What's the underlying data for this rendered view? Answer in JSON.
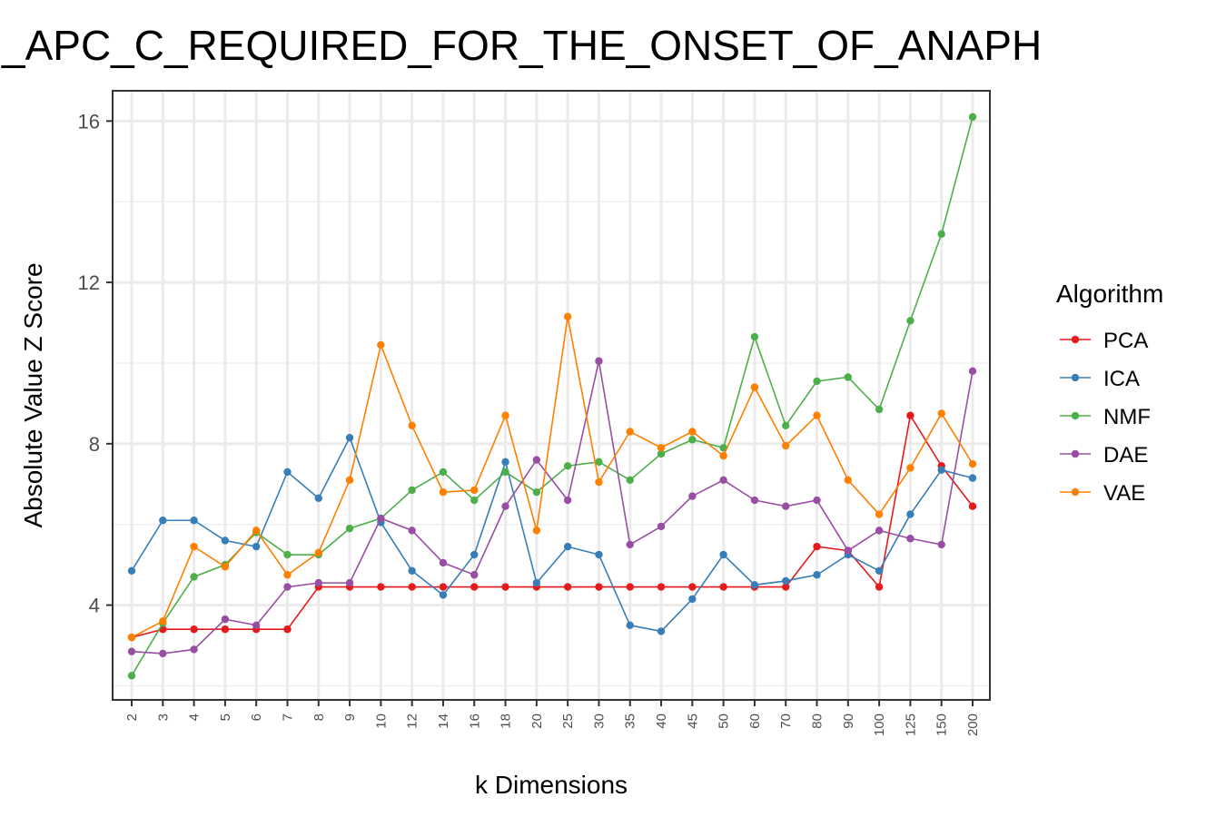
{
  "chart_data": {
    "type": "line",
    "title": "_APC_C_REQUIRED_FOR_THE_ONSET_OF_ANAPH",
    "xlabel": "k Dimensions",
    "ylabel": "Absolute Value Z Score",
    "categories": [
      "2",
      "3",
      "4",
      "5",
      "6",
      "7",
      "8",
      "9",
      "10",
      "12",
      "14",
      "16",
      "18",
      "20",
      "25",
      "30",
      "35",
      "40",
      "45",
      "50",
      "60",
      "70",
      "80",
      "90",
      "100",
      "125",
      "150",
      "200"
    ],
    "yticks": [
      4,
      8,
      12,
      16
    ],
    "ylim": [
      1.65,
      16.75
    ],
    "grid": true,
    "legend": {
      "title": "Algorithm",
      "position": "right"
    },
    "series": [
      {
        "name": "PCA",
        "color": "#e41a1c",
        "values": [
          3.2,
          3.4,
          3.4,
          3.4,
          3.4,
          3.4,
          4.45,
          4.45,
          4.45,
          4.45,
          4.45,
          4.45,
          4.45,
          4.45,
          4.45,
          4.45,
          4.45,
          4.45,
          4.45,
          4.45,
          4.45,
          4.45,
          5.45,
          5.35,
          4.45,
          8.7,
          7.45,
          6.45
        ]
      },
      {
        "name": "ICA",
        "color": "#377eb8",
        "values": [
          4.85,
          6.1,
          6.1,
          5.6,
          5.45,
          7.3,
          6.65,
          8.15,
          6.05,
          4.85,
          4.25,
          5.25,
          7.55,
          4.55,
          5.45,
          5.25,
          3.5,
          3.35,
          4.15,
          5.25,
          4.5,
          4.6,
          4.75,
          5.25,
          4.85,
          6.25,
          7.35,
          7.15
        ]
      },
      {
        "name": "NMF",
        "color": "#4daf4a",
        "values": [
          2.25,
          3.55,
          4.7,
          5.0,
          5.8,
          5.25,
          5.25,
          5.9,
          6.15,
          6.85,
          7.3,
          6.6,
          7.3,
          6.8,
          7.45,
          7.55,
          7.1,
          7.75,
          8.1,
          7.9,
          10.65,
          8.45,
          9.55,
          9.65,
          8.85,
          11.05,
          13.2,
          16.1
        ]
      },
      {
        "name": "DAE",
        "color": "#984ea3",
        "values": [
          2.85,
          2.8,
          2.9,
          3.65,
          3.5,
          4.45,
          4.55,
          4.55,
          6.15,
          5.85,
          5.05,
          4.75,
          6.45,
          7.6,
          6.6,
          10.05,
          5.5,
          5.95,
          6.7,
          7.1,
          6.6,
          6.45,
          6.6,
          5.35,
          5.85,
          5.65,
          5.5,
          9.8
        ]
      },
      {
        "name": "VAE",
        "color": "#ff7f00",
        "values": [
          3.2,
          3.6,
          5.45,
          4.95,
          5.85,
          4.75,
          5.3,
          7.1,
          10.45,
          8.45,
          6.8,
          6.85,
          8.7,
          5.85,
          11.15,
          7.05,
          8.3,
          7.9,
          8.3,
          7.7,
          9.4,
          7.95,
          8.7,
          7.1,
          6.25,
          7.4,
          8.75,
          7.5
        ]
      }
    ]
  }
}
